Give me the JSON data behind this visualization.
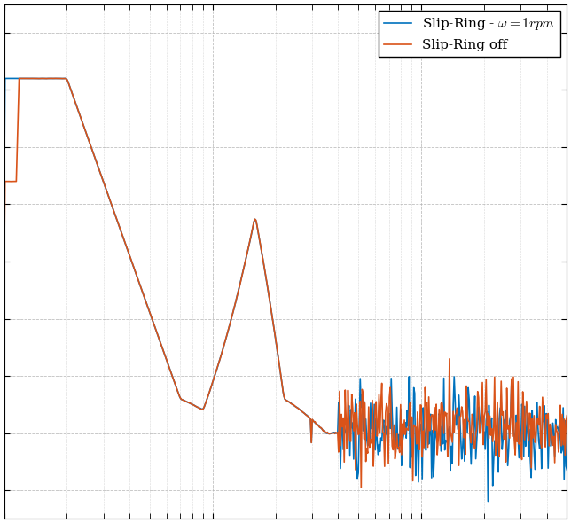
{
  "line1_color": "#0072BD",
  "line2_color": "#D95319",
  "line1_label": "Slip-Ring - $\\omega = 1rpm$",
  "line2_label": "Slip-Ring off",
  "legend_loc": "upper right",
  "background_color": "#ffffff",
  "grid_color": "#b0b0b0",
  "linewidth": 1.2,
  "seed1": 42,
  "seed2": 99
}
